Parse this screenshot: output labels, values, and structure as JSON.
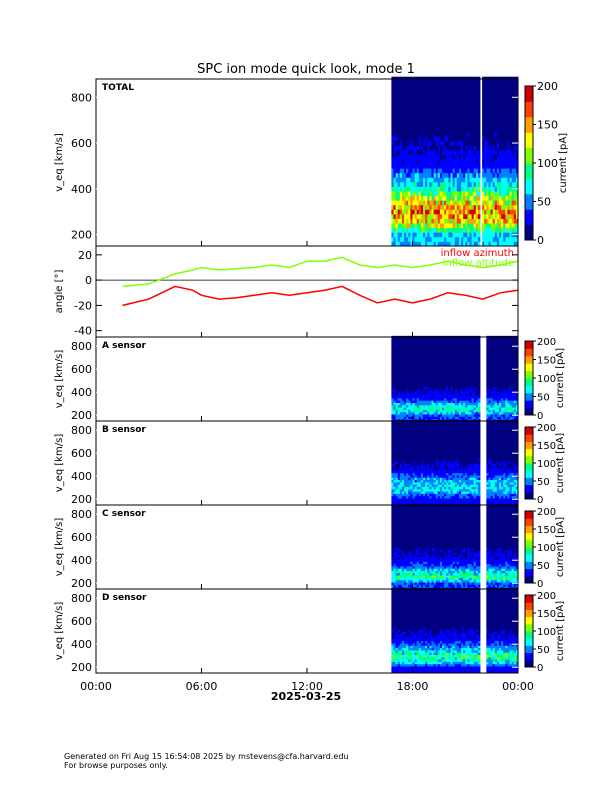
{
  "title": "SPC ion mode quick look, mode 1",
  "footer": {
    "line1": "Generated on Fri Aug 15 16:54:08 2025 by mstevens@cfa.harvard.edu",
    "line2": "For browse purposes only."
  },
  "colorbar": {
    "label": "current [pA]",
    "colors": [
      "#000080",
      "#0000ff",
      "#0080ff",
      "#00ffff",
      "#00ff80",
      "#80ff00",
      "#ffff00",
      "#ffa000",
      "#ff4000",
      "#d00000"
    ]
  },
  "chart_data": [
    {
      "type": "heatmap",
      "panel": "TOTAL",
      "label": "TOTAL",
      "ylabel": "v_eq [km/s]",
      "ylim": [
        150,
        880
      ],
      "yticks": [
        200,
        400,
        600,
        800
      ],
      "colorbar_ticks": [
        0,
        50,
        100,
        150,
        200
      ],
      "colorbar_range": [
        0,
        200
      ],
      "data_start_hour": 16.8,
      "data_gap_hours": [
        [
          21.75,
          21.9
        ]
      ],
      "profile": [
        {
          "v": 200,
          "current": 60
        },
        {
          "v": 250,
          "current": 130
        },
        {
          "v": 300,
          "current": 160
        },
        {
          "v": 350,
          "current": 130
        },
        {
          "v": 400,
          "current": 80
        },
        {
          "v": 450,
          "current": 55
        },
        {
          "v": 500,
          "current": 30
        },
        {
          "v": 600,
          "current": 18
        },
        {
          "v": 700,
          "current": 12
        },
        {
          "v": 800,
          "current": 8
        }
      ]
    },
    {
      "type": "line",
      "panel": "angle",
      "ylabel": "angle [°]",
      "ylim": [
        -45,
        27
      ],
      "yticks": [
        -40,
        -20,
        0,
        20
      ],
      "series": [
        {
          "name": "inflow azimuth",
          "color": "#ff0000",
          "x": [
            1.5,
            3,
            4.5,
            5.5,
            6,
            7,
            8,
            9,
            10,
            11,
            12,
            13,
            14,
            15,
            16,
            17,
            18,
            19,
            20,
            21,
            22,
            23,
            24
          ],
          "y": [
            -20,
            -15,
            -5,
            -8,
            -12,
            -15,
            -14,
            -12,
            -10,
            -12,
            -10,
            -8,
            -5,
            -12,
            -18,
            -15,
            -18,
            -15,
            -10,
            -12,
            -15,
            -10,
            -8
          ]
        },
        {
          "name": "inflow altitude",
          "color": "#80ff00",
          "x": [
            1.5,
            3,
            4.5,
            5.5,
            6,
            7,
            8,
            9,
            10,
            11,
            12,
            13,
            14,
            15,
            16,
            17,
            18,
            19,
            20,
            21,
            22,
            23,
            24
          ],
          "y": [
            -5,
            -3,
            5,
            8,
            10,
            8,
            9,
            10,
            12,
            10,
            15,
            15,
            18,
            12,
            10,
            12,
            10,
            12,
            15,
            12,
            10,
            12,
            15
          ]
        }
      ]
    },
    {
      "type": "heatmap",
      "panel": "A",
      "label": "A sensor",
      "ylabel": "v_eq [km/s]",
      "ylim": [
        150,
        880
      ],
      "yticks": [
        200,
        400,
        600,
        800
      ],
      "colorbar_ticks": [
        0,
        50,
        100,
        150,
        200
      ],
      "data_start_hour": 16.8,
      "data_gap_hours": [
        [
          21.75,
          22.1
        ]
      ],
      "profile": [
        {
          "v": 200,
          "current": 40
        },
        {
          "v": 250,
          "current": 80
        },
        {
          "v": 300,
          "current": 60
        },
        {
          "v": 350,
          "current": 30
        },
        {
          "v": 450,
          "current": 15
        },
        {
          "v": 600,
          "current": 8
        },
        {
          "v": 800,
          "current": 5
        }
      ]
    },
    {
      "type": "heatmap",
      "panel": "B",
      "label": "B sensor",
      "ylabel": "v_eq [km/s]",
      "ylim": [
        150,
        880
      ],
      "yticks": [
        200,
        400,
        600,
        800
      ],
      "colorbar_ticks": [
        0,
        50,
        100,
        150,
        200
      ],
      "data_start_hour": 16.8,
      "data_gap_hours": [
        [
          21.75,
          22.1
        ]
      ],
      "profile": [
        {
          "v": 200,
          "current": 30
        },
        {
          "v": 250,
          "current": 50
        },
        {
          "v": 300,
          "current": 70
        },
        {
          "v": 350,
          "current": 60
        },
        {
          "v": 450,
          "current": 25
        },
        {
          "v": 600,
          "current": 10
        },
        {
          "v": 800,
          "current": 6
        }
      ]
    },
    {
      "type": "heatmap",
      "panel": "C",
      "label": "C sensor",
      "ylabel": "v_eq [km/s]",
      "ylim": [
        150,
        880
      ],
      "yticks": [
        200,
        400,
        600,
        800
      ],
      "colorbar_ticks": [
        0,
        50,
        100,
        150,
        200
      ],
      "data_start_hour": 16.8,
      "data_gap_hours": [
        [
          21.75,
          22.1
        ]
      ],
      "profile": [
        {
          "v": 200,
          "current": 40
        },
        {
          "v": 250,
          "current": 90
        },
        {
          "v": 300,
          "current": 70
        },
        {
          "v": 350,
          "current": 40
        },
        {
          "v": 450,
          "current": 20
        },
        {
          "v": 600,
          "current": 10
        },
        {
          "v": 800,
          "current": 6
        }
      ]
    },
    {
      "type": "heatmap",
      "panel": "D",
      "label": "D sensor",
      "ylabel": "v_eq [km/s]",
      "ylim": [
        150,
        880
      ],
      "yticks": [
        200,
        400,
        600,
        800
      ],
      "colorbar_ticks": [
        0,
        50,
        100,
        150,
        200
      ],
      "data_start_hour": 16.8,
      "data_gap_hours": [
        [
          21.75,
          22.1
        ]
      ],
      "profile": [
        {
          "v": 200,
          "current": 30
        },
        {
          "v": 250,
          "current": 70
        },
        {
          "v": 300,
          "current": 90
        },
        {
          "v": 350,
          "current": 60
        },
        {
          "v": 450,
          "current": 25
        },
        {
          "v": 600,
          "current": 10
        },
        {
          "v": 800,
          "current": 6
        }
      ]
    }
  ],
  "x_axis": {
    "range_hours": [
      0,
      24
    ],
    "ticks": [
      {
        "hour": 0,
        "label": "00:00"
      },
      {
        "hour": 6,
        "label": "06:00"
      },
      {
        "hour": 12,
        "label": "12:00"
      },
      {
        "hour": 18,
        "label": "18:00"
      },
      {
        "hour": 24,
        "label": "00:00"
      }
    ],
    "date": "2025-03-25"
  }
}
